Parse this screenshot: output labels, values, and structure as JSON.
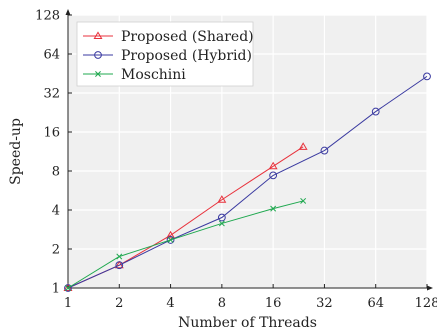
{
  "chart_data": {
    "type": "line",
    "xlabel": "Number of Threads",
    "ylabel": "Speed-up",
    "xscale": "log2",
    "yscale": "log2",
    "xlim": [
      1,
      128
    ],
    "ylim": [
      1,
      128
    ],
    "xticks": [
      1,
      2,
      4,
      8,
      16,
      32,
      64,
      128
    ],
    "yticks": [
      1,
      2,
      4,
      8,
      16,
      32,
      64,
      128
    ],
    "grid": true,
    "background": "#f0f0f0",
    "legend_position": "top-left",
    "series": [
      {
        "name": "Proposed (Shared)",
        "color": "#e8323c",
        "marker": "triangle",
        "x": [
          1,
          2,
          4,
          8,
          16,
          24
        ],
        "y": [
          1,
          1.5,
          2.55,
          4.8,
          8.7,
          12.3
        ]
      },
      {
        "name": "Proposed (Hybrid)",
        "color": "#3a3aa0",
        "marker": "circle",
        "x": [
          1,
          2,
          4,
          8,
          16,
          32,
          64,
          128
        ],
        "y": [
          1,
          1.5,
          2.35,
          3.5,
          7.4,
          11.5,
          23,
          43
        ]
      },
      {
        "name": "Moschini",
        "color": "#1fa84f",
        "marker": "x",
        "x": [
          1,
          2,
          4,
          8,
          16,
          24
        ],
        "y": [
          1,
          1.75,
          2.35,
          3.15,
          4.1,
          4.7
        ]
      }
    ]
  }
}
